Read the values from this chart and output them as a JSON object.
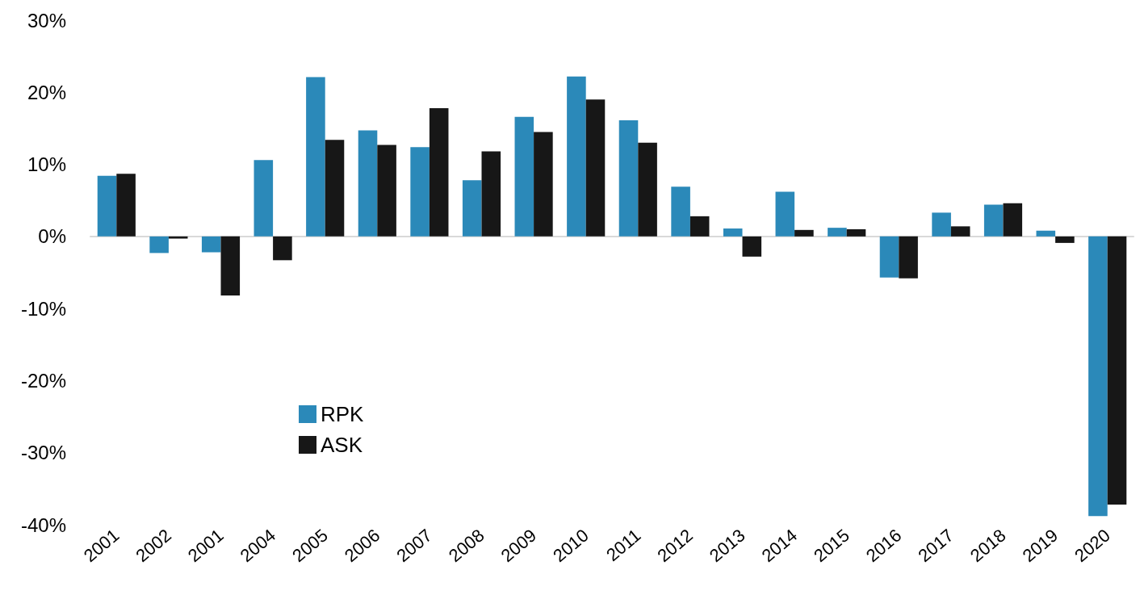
{
  "chart_data": {
    "type": "bar",
    "categories": [
      "2001",
      "2002",
      "2001",
      "2004",
      "2005",
      "2006",
      "2007",
      "2008",
      "2009",
      "2010",
      "2011",
      "2012",
      "2013",
      "2014",
      "2015",
      "2016",
      "2017",
      "2018",
      "2019",
      "2020"
    ],
    "series": [
      {
        "name": "RPK",
        "color": "#2b89b9",
        "values": [
          8.4,
          -2.3,
          -2.2,
          10.6,
          22.1,
          14.7,
          12.4,
          7.8,
          16.6,
          22.2,
          16.1,
          6.9,
          1.1,
          6.2,
          1.2,
          -5.7,
          3.3,
          4.4,
          0.8,
          -38.8
        ]
      },
      {
        "name": "ASK",
        "color": "#171717",
        "values": [
          8.7,
          -0.3,
          -8.2,
          -3.3,
          13.4,
          12.7,
          17.8,
          11.8,
          14.5,
          19.0,
          13.0,
          2.8,
          -2.8,
          0.9,
          1.0,
          -5.8,
          1.4,
          4.6,
          -0.9,
          -37.2
        ]
      }
    ],
    "ylim": [
      -40,
      30
    ],
    "yticks": [
      {
        "value": -40,
        "label": "-40%"
      },
      {
        "value": -30,
        "label": "-30%"
      },
      {
        "value": -20,
        "label": "-20%"
      },
      {
        "value": -10,
        "label": "-10%"
      },
      {
        "value": 0,
        "label": "0%"
      },
      {
        "value": 10,
        "label": "10%"
      },
      {
        "value": 20,
        "label": "20%"
      },
      {
        "value": 30,
        "label": "30%"
      }
    ],
    "legend": "bottom left"
  }
}
